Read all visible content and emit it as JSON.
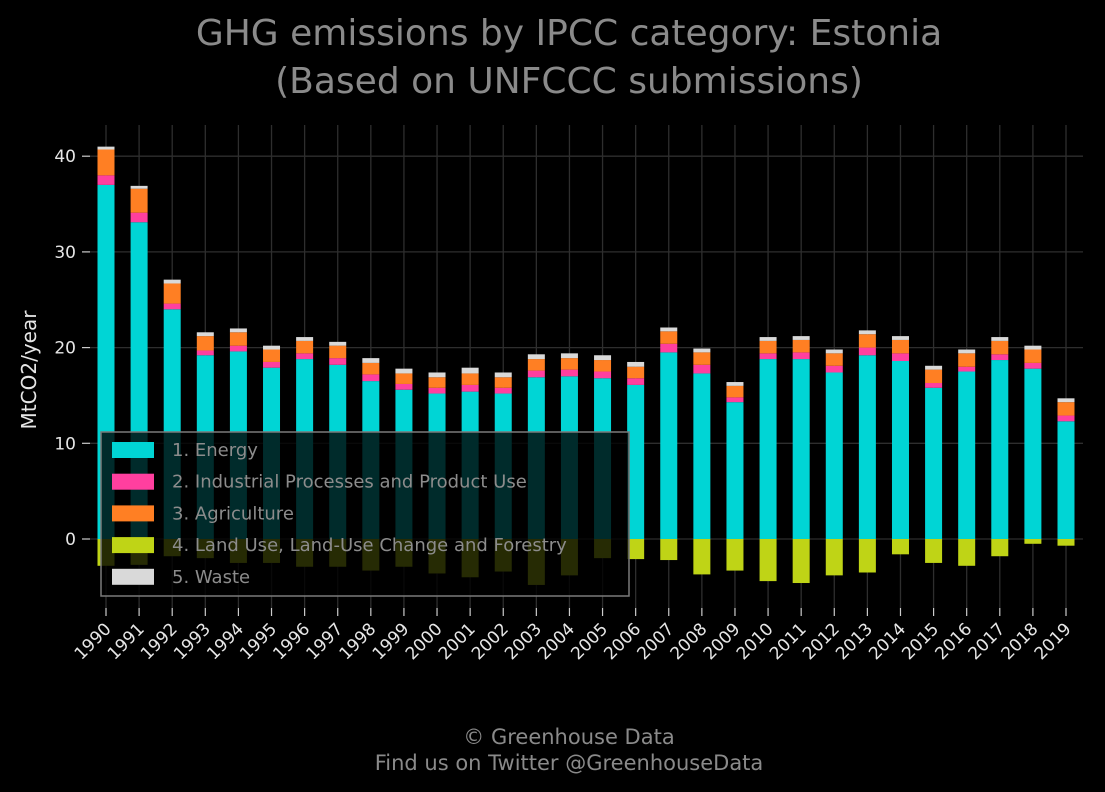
{
  "chart_data": {
    "type": "bar",
    "stacked": true,
    "title": "GHG emissions by IPCC category: Estonia",
    "subtitle": "(Based on UNFCCC submissions)",
    "xlabel": "",
    "ylabel": "MtCO2/year",
    "ylim": [
      -7,
      43
    ],
    "yticks": [
      0,
      10,
      20,
      30,
      40
    ],
    "grid": true,
    "legend_position": "lower-left",
    "categories": [
      "1990",
      "1991",
      "1992",
      "1993",
      "1994",
      "1995",
      "1996",
      "1997",
      "1998",
      "1999",
      "2000",
      "2001",
      "2002",
      "2003",
      "2004",
      "2005",
      "2006",
      "2007",
      "2008",
      "2009",
      "2010",
      "2011",
      "2012",
      "2013",
      "2014",
      "2015",
      "2016",
      "2017",
      "2018",
      "2019"
    ],
    "series": [
      {
        "name": "1. Energy",
        "color": "#00d5d5",
        "values": [
          37.0,
          33.1,
          24.0,
          19.2,
          19.6,
          17.9,
          18.8,
          18.2,
          16.5,
          15.6,
          15.2,
          15.4,
          15.2,
          16.9,
          17.0,
          16.8,
          16.1,
          19.5,
          17.3,
          14.3,
          18.8,
          18.8,
          17.4,
          19.2,
          18.6,
          15.8,
          17.5,
          18.7,
          17.8,
          12.3
        ]
      },
      {
        "name": "2. Industrial Processes and Product Use",
        "color": "#ff3f9f",
        "values": [
          1.0,
          1.0,
          0.6,
          0.5,
          0.6,
          0.6,
          0.6,
          0.7,
          0.7,
          0.6,
          0.6,
          0.7,
          0.6,
          0.7,
          0.7,
          0.7,
          0.7,
          0.9,
          0.9,
          0.5,
          0.6,
          0.7,
          0.7,
          0.8,
          0.8,
          0.5,
          0.5,
          0.6,
          0.6,
          0.6
        ]
      },
      {
        "name": "3. Agriculture",
        "color": "#ff7f23",
        "values": [
          2.7,
          2.5,
          2.1,
          1.5,
          1.4,
          1.3,
          1.3,
          1.3,
          1.2,
          1.1,
          1.1,
          1.2,
          1.1,
          1.2,
          1.2,
          1.2,
          1.2,
          1.3,
          1.3,
          1.2,
          1.3,
          1.3,
          1.3,
          1.4,
          1.4,
          1.4,
          1.4,
          1.4,
          1.4,
          1.4
        ]
      },
      {
        "name": "4. Land Use, Land-Use Change and Forestry",
        "color": "#bfd416",
        "values": [
          -2.8,
          -2.7,
          -1.8,
          -2.0,
          -2.5,
          -2.5,
          -2.9,
          -2.9,
          -3.3,
          -2.9,
          -3.6,
          -4.0,
          -3.4,
          -4.8,
          -3.8,
          -2.0,
          -2.1,
          -2.2,
          -3.7,
          -3.3,
          -4.4,
          -4.6,
          -3.8,
          -3.5,
          -1.6,
          -2.5,
          -2.8,
          -1.8,
          -0.5,
          -0.7
        ]
      },
      {
        "name": "5. Waste",
        "color": "#d9d9d9",
        "values": [
          0.3,
          0.3,
          0.4,
          0.4,
          0.4,
          0.4,
          0.4,
          0.4,
          0.5,
          0.5,
          0.5,
          0.6,
          0.5,
          0.5,
          0.5,
          0.5,
          0.5,
          0.4,
          0.4,
          0.4,
          0.4,
          0.4,
          0.4,
          0.4,
          0.4,
          0.4,
          0.4,
          0.4,
          0.4,
          0.4
        ]
      }
    ]
  },
  "credits": {
    "line1": "© Greenhouse Data",
    "line2": "Find us on Twitter @GreenhouseData"
  },
  "colors": {
    "background": "#000000",
    "grid": "#2e2e2e",
    "title": "#8a8a8a",
    "tick_text": "#e6e6e6",
    "legend_border": "#7a7a7a",
    "legend_text": "#8c8c8c"
  }
}
